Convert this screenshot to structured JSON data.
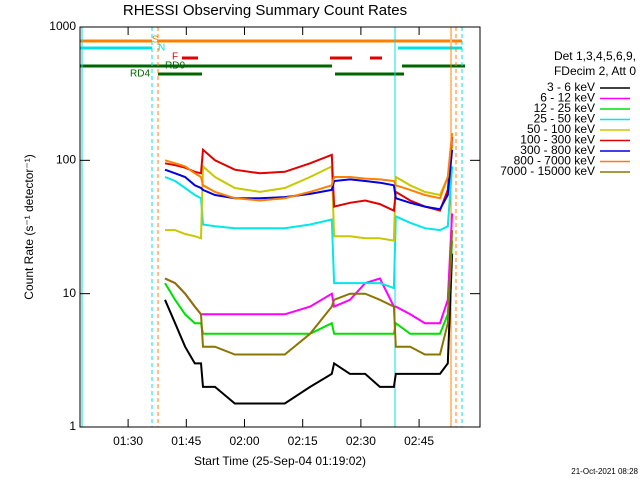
{
  "chart_data": {
    "type": "line",
    "title": "RHESSI Observing Summary Count Rates",
    "x_label": "Start Time (25-Sep-04 01:19:02)",
    "y_label": "Count Rate (s⁻¹ detector⁻¹)",
    "legend_header": [
      "Det 1,3,4,5,6,9,",
      "FDecim 2, Att 0"
    ],
    "footer": "21-Oct-2021 08:28",
    "annotations": [
      {
        "text": "S",
        "color": "#ff8000"
      },
      {
        "text": "N",
        "color": "#00e0e0"
      },
      {
        "text": "F",
        "color": "#e00000"
      },
      {
        "text": "RD0",
        "color": "#006400"
      },
      {
        "text": "RD4",
        "color": "#006400"
      }
    ],
    "log_y": true,
    "xlim": [
      77.6,
      180.7
    ],
    "xticks": [
      {
        "value": 90,
        "label": "01:30"
      },
      {
        "value": 105,
        "label": "01:45"
      },
      {
        "value": 120,
        "label": "02:00"
      },
      {
        "value": 135,
        "label": "02:15"
      },
      {
        "value": 150,
        "label": "02:30"
      },
      {
        "value": 165,
        "label": "02:45"
      }
    ],
    "ylim": [
      1,
      1000
    ],
    "yticks": [
      1,
      10,
      100,
      1000
    ],
    "x": [
      99.5,
      102.1,
      104.7,
      107.2,
      108.8,
      109.3,
      112.4,
      117.5,
      124.0,
      130.4,
      136.9,
      142.5,
      143.1,
      147.2,
      151.1,
      154.9,
      158.5,
      159.0,
      162.7,
      166.5,
      170.4,
      172.4,
      173.5
    ],
    "series": [
      {
        "name": "3 - 6 keV",
        "color": "#000000",
        "values": [
          9,
          6,
          4,
          3,
          3,
          2,
          2,
          1.5,
          1.5,
          1.5,
          2,
          2.5,
          3,
          2.5,
          2.5,
          2,
          2,
          2.5,
          2.5,
          2.5,
          2.5,
          3,
          20
        ]
      },
      {
        "name": "6 - 12 keV",
        "color": "#ff00ff",
        "values": [
          13,
          12,
          10,
          8,
          7,
          7,
          7,
          7,
          7,
          7,
          8,
          10,
          8,
          9,
          12,
          13,
          8,
          8,
          7,
          6,
          6,
          9,
          40
        ]
      },
      {
        "name": "12 - 25 keV",
        "color": "#00e000",
        "values": [
          12,
          9,
          7,
          6,
          6,
          5,
          5,
          5,
          5,
          5,
          5,
          6,
          5,
          5,
          5,
          5,
          5,
          6,
          5,
          5,
          5,
          7,
          25
        ]
      },
      {
        "name": "25 - 50 keV",
        "color": "#00e8e8",
        "values": [
          75,
          70,
          62,
          55,
          52,
          33,
          32,
          31,
          31,
          31,
          33,
          36,
          12,
          12,
          12,
          12,
          11,
          38,
          34,
          31,
          30,
          32,
          90
        ]
      },
      {
        "name": "50 - 100 keV",
        "color": "#c8c800",
        "values": [
          30,
          30,
          28,
          27,
          26,
          90,
          75,
          62,
          58,
          62,
          75,
          90,
          27,
          27,
          26,
          26,
          25,
          75,
          65,
          58,
          55,
          75,
          130
        ]
      },
      {
        "name": "100 - 300 keV",
        "color": "#e00000",
        "values": [
          95,
          92,
          88,
          82,
          80,
          120,
          100,
          85,
          80,
          82,
          95,
          110,
          45,
          48,
          50,
          47,
          42,
          58,
          50,
          45,
          42,
          60,
          150
        ]
      },
      {
        "name": "300 - 800 keV",
        "color": "#0000e0",
        "values": [
          85,
          80,
          75,
          65,
          62,
          60,
          55,
          52,
          52,
          53,
          56,
          60,
          70,
          72,
          70,
          68,
          65,
          52,
          48,
          45,
          43,
          55,
          120
        ]
      },
      {
        "name": "800 - 7000 keV",
        "color": "#ff8000",
        "values": [
          100,
          95,
          90,
          80,
          75,
          65,
          58,
          52,
          50,
          52,
          58,
          65,
          75,
          75,
          73,
          72,
          70,
          65,
          60,
          55,
          52,
          75,
          160
        ]
      },
      {
        "name": "7000 - 15000 keV",
        "color": "#8b7500",
        "values": [
          13,
          12,
          10,
          8,
          7,
          4,
          4,
          3.5,
          3.5,
          3.5,
          5,
          8,
          9,
          10,
          10,
          9,
          8,
          4,
          4,
          3.5,
          3.5,
          6,
          30
        ]
      }
    ]
  }
}
